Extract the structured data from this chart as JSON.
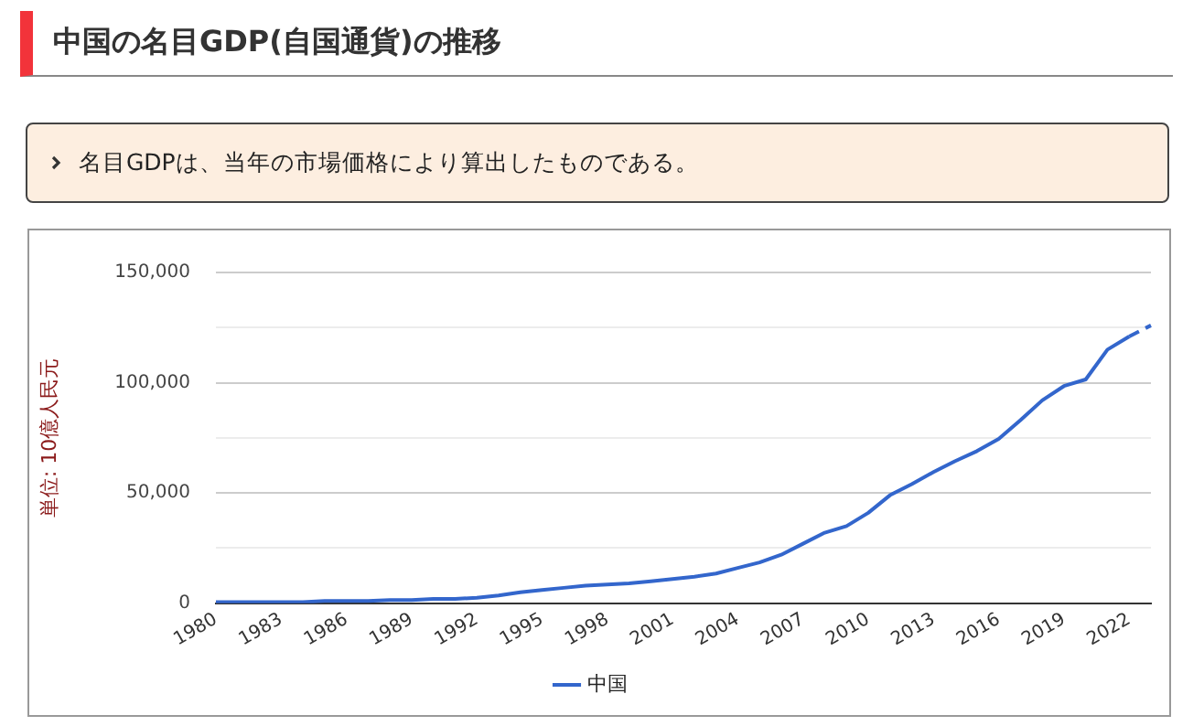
{
  "chart_data": {
    "type": "line",
    "title": "中国の名目GDP(自国通貨)の推移",
    "annotations": [
      "名目GDPは、当年の市場価格により算出したものである。"
    ],
    "ylabel": "単位: 10億人民元",
    "categories": [
      "1980",
      null,
      null,
      "1983",
      null,
      null,
      "1986",
      null,
      null,
      "1989",
      null,
      null,
      "1992",
      null,
      null,
      "1995",
      null,
      null,
      "1998",
      null,
      null,
      "2001",
      null,
      null,
      "2004",
      null,
      null,
      "2007",
      null,
      null,
      "2010",
      null,
      null,
      "2013",
      null,
      null,
      "2016",
      null,
      null,
      "2019",
      null,
      null,
      "2022",
      null
    ],
    "series": [
      {
        "name": "中国",
        "color": "#3366cc",
        "values": [
          500,
          500,
          500,
          500,
          500,
          1000,
          1000,
          1000,
          1500,
          1500,
          2000,
          2000,
          2500,
          3500,
          5000,
          6000,
          7000,
          8000,
          8500,
          9000,
          10000,
          11000,
          12000,
          13500,
          16000,
          18500,
          22000,
          27000,
          32000,
          35000,
          41000,
          49000,
          54000,
          59500,
          64500,
          69000,
          74500,
          83000,
          92000,
          98500,
          101500,
          115000,
          121000,
          null
        ]
      },
      {
        "color": "#3366cc",
        "line_style": "dashed",
        "values": [
          null,
          null,
          null,
          null,
          null,
          null,
          null,
          null,
          null,
          null,
          null,
          null,
          null,
          null,
          null,
          null,
          null,
          null,
          null,
          null,
          null,
          null,
          null,
          null,
          null,
          null,
          null,
          null,
          null,
          null,
          null,
          null,
          null,
          null,
          null,
          null,
          null,
          null,
          null,
          null,
          null,
          null,
          121000,
          126000
        ]
      }
    ],
    "ylim": [
      0,
      150000
    ],
    "yticks": [
      0,
      {
        "value": 25000,
        "label": null
      },
      {
        "value": 50000,
        "label": "50,000"
      },
      {
        "value": 75000,
        "label": null
      },
      {
        "value": 100000,
        "label": "100,000"
      },
      {
        "value": 125000,
        "label": null
      },
      {
        "value": 150000,
        "label": "150,000"
      }
    ],
    "grid": "y",
    "legend": "bottom",
    "marker": "none",
    "line_style": "solid"
  }
}
